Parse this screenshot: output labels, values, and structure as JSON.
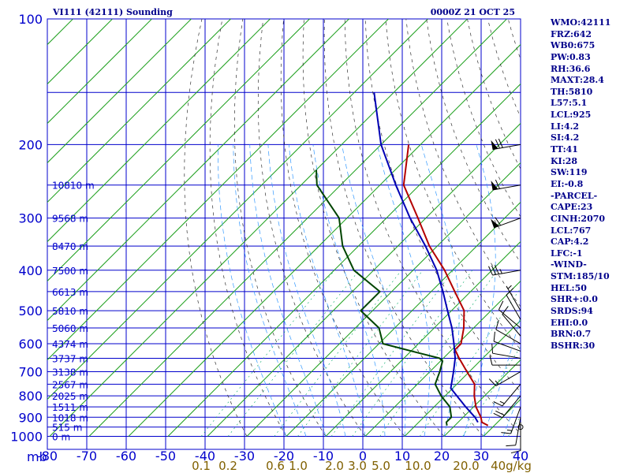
{
  "header": {
    "title": "VI111 (42111) Sounding",
    "datetime": "0000Z 21 OCT 25"
  },
  "colors": {
    "grid": "#0000cc",
    "isotherm": "#1fa01f",
    "temperature": "#b40000",
    "dewpoint": "#004400",
    "parcel": "#0000b4",
    "mixing_ratio": "#00aa66",
    "adiabat": "#333333",
    "moist_adiabat": "#3399ff",
    "labels_left": "#0000cc",
    "labels_mixing": "#806000",
    "stats": "#00008b"
  },
  "stats": [
    "WMO:42111",
    "FRZ:642",
    "WB0:675",
    "PW:0.83",
    "RH:36.6",
    "MAXT:28.4",
    "TH:5810",
    "L57:5.1",
    "LCL:925",
    "LI:4.2",
    "SI:4.2",
    "TT:41",
    "KI:28",
    "SW:119",
    "EI:-0.8",
    "-PARCEL-",
    "CAPE:23",
    "CINH:2070",
    "LCL:767",
    "CAP:4.2",
    "LFC:-1",
    "-WIND-",
    "STM:185/10",
    "HEL:50",
    "SHR+:0.0",
    "SRDS:94",
    "EHI:0.0",
    "BRN:0.7",
    "BSHR:30"
  ],
  "chart_data": {
    "type": "line",
    "title": "VI111 (42111) Sounding",
    "subtitle": "0000Z 21 OCT 25",
    "y_scale": "log",
    "pressure_unit": "mb",
    "ylim": [
      1000,
      100
    ],
    "xlim": [
      -80,
      40
    ],
    "pressure_ticks": [
      100,
      200,
      300,
      400,
      500,
      600,
      700,
      800,
      900,
      1000
    ],
    "temperature_ticks": [
      "-80",
      "-70",
      "-60",
      "-50",
      "-40",
      "-30",
      "-20",
      "-10",
      "0",
      "10",
      "20",
      "30",
      "40"
    ],
    "mixing_ratio_ticks": [
      "0.1",
      "0.2",
      "0.6",
      "1.0",
      "2.0",
      "3.0",
      "5.0",
      "10.0",
      "20.0",
      "40g/kg"
    ],
    "mixing_ratio_values": [
      0.1,
      0.2,
      0.6,
      1.0,
      2.0,
      3.0,
      5.0,
      10.0,
      20.0,
      40.0
    ],
    "grid": true,
    "height_labels": [
      {
        "p": 250,
        "label": "10810 m"
      },
      {
        "p": 300,
        "label": "9568 m"
      },
      {
        "p": 350,
        "label": "8470 m"
      },
      {
        "p": 400,
        "label": "7500 m"
      },
      {
        "p": 450,
        "label": "6613 m"
      },
      {
        "p": 500,
        "label": "5810 m"
      },
      {
        "p": 550,
        "label": "5060 m"
      },
      {
        "p": 600,
        "label": "4374 m"
      },
      {
        "p": 650,
        "label": "3737 m"
      },
      {
        "p": 700,
        "label": "3138 m"
      },
      {
        "p": 750,
        "label": "2567 m"
      },
      {
        "p": 800,
        "label": "2025 m"
      },
      {
        "p": 850,
        "label": "1511 m"
      },
      {
        "p": 900,
        "label": "1018 m"
      },
      {
        "p": 950,
        "label": "515 m"
      },
      {
        "p": 1000,
        "label": "0 m"
      }
    ],
    "series": [
      {
        "id": "temperature",
        "points": [
          [
            942,
            28.4
          ],
          [
            925,
            26.0
          ],
          [
            900,
            24.5
          ],
          [
            850,
            20.6
          ],
          [
            800,
            17.4
          ],
          [
            750,
            14.5
          ],
          [
            700,
            9.4
          ],
          [
            650,
            4.0
          ],
          [
            620,
            0.8
          ],
          [
            600,
            0.8
          ],
          [
            550,
            -2.5
          ],
          [
            500,
            -6.8
          ],
          [
            450,
            -14.0
          ],
          [
            400,
            -22.0
          ],
          [
            350,
            -32.0
          ],
          [
            300,
            -42.0
          ],
          [
            250,
            -54.0
          ],
          [
            200,
            -63.0
          ]
        ]
      },
      {
        "id": "dewpoint",
        "points": [
          [
            942,
            18.0
          ],
          [
            925,
            17.0
          ],
          [
            900,
            17.0
          ],
          [
            850,
            14.0
          ],
          [
            800,
            9.0
          ],
          [
            750,
            4.5
          ],
          [
            700,
            2.5
          ],
          [
            660,
            0.5
          ],
          [
            650,
            -1.0
          ],
          [
            630,
            -8.0
          ],
          [
            600,
            -19.0
          ],
          [
            550,
            -24.0
          ],
          [
            500,
            -33.0
          ],
          [
            450,
            -33.0
          ],
          [
            400,
            -45.0
          ],
          [
            350,
            -54.0
          ],
          [
            300,
            -62.0
          ],
          [
            250,
            -76.0
          ],
          [
            230,
            -80.0
          ]
        ]
      },
      {
        "id": "parcel",
        "points": [
          [
            925,
            25.0
          ],
          [
            900,
            23.0
          ],
          [
            850,
            18.0
          ],
          [
            800,
            13.0
          ],
          [
            767,
            9.5
          ],
          [
            700,
            6.0
          ],
          [
            650,
            3.0
          ],
          [
            600,
            -1.0
          ],
          [
            550,
            -5.5
          ],
          [
            500,
            -11.0
          ],
          [
            450,
            -17.0
          ],
          [
            400,
            -24.0
          ],
          [
            350,
            -33.0
          ],
          [
            300,
            -44.0
          ],
          [
            250,
            -56.0
          ],
          [
            200,
            -70.0
          ],
          [
            150,
            -85.0
          ]
        ]
      }
    ],
    "wind_barbs": [
      {
        "p": 200,
        "dir": 260,
        "speed_kt": 70
      },
      {
        "p": 250,
        "dir": 260,
        "speed_kt": 60
      },
      {
        "p": 300,
        "dir": 250,
        "speed_kt": 60
      },
      {
        "p": 400,
        "dir": 260,
        "speed_kt": 35
      },
      {
        "p": 500,
        "dir": 330,
        "speed_kt": 5
      },
      {
        "p": 525,
        "dir": 330,
        "speed_kt": 10
      },
      {
        "p": 550,
        "dir": 310,
        "speed_kt": 10
      },
      {
        "p": 575,
        "dir": 320,
        "speed_kt": 10
      },
      {
        "p": 600,
        "dir": 300,
        "speed_kt": 10
      },
      {
        "p": 625,
        "dir": 290,
        "speed_kt": 10
      },
      {
        "p": 650,
        "dir": 280,
        "speed_kt": 10
      },
      {
        "p": 675,
        "dir": 270,
        "speed_kt": 10
      },
      {
        "p": 700,
        "dir": 240,
        "speed_kt": 15
      },
      {
        "p": 750,
        "dir": 220,
        "speed_kt": 15
      },
      {
        "p": 800,
        "dir": 220,
        "speed_kt": 20
      },
      {
        "p": 850,
        "dir": 200,
        "speed_kt": 15
      },
      {
        "p": 900,
        "dir": 190,
        "speed_kt": 10
      },
      {
        "p": 925,
        "dir": 180,
        "speed_kt": 10
      },
      {
        "p": 950,
        "dir": 0,
        "speed_kt": 0
      }
    ]
  }
}
